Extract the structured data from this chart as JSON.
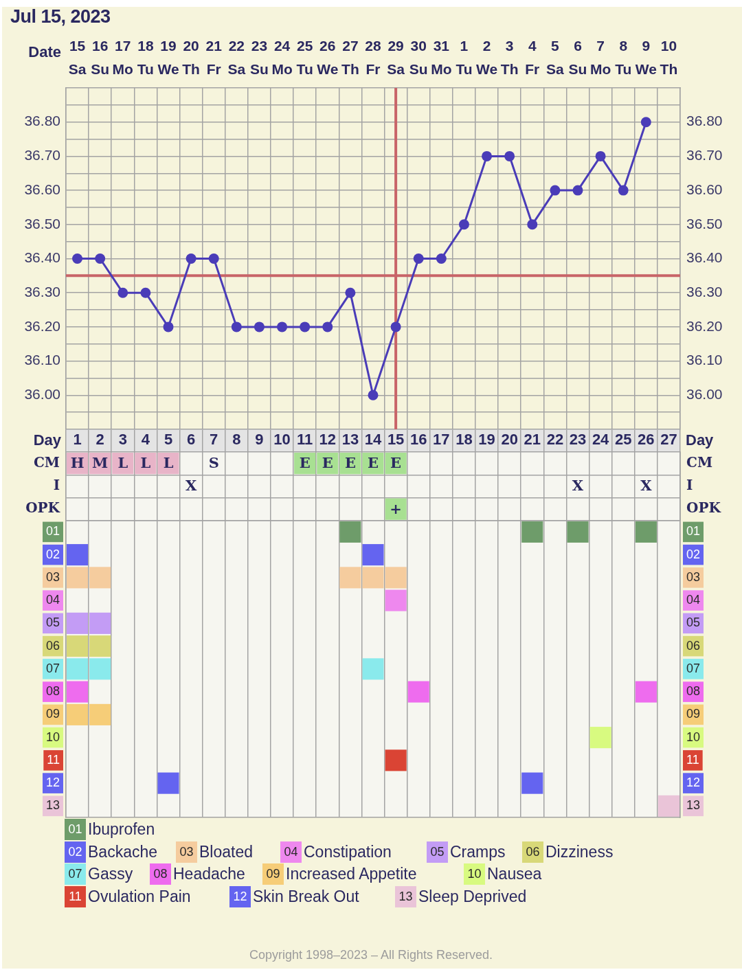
{
  "chart_data": [
    {
      "type": "line",
      "title": "Jul 15, 2023",
      "xlabel": "Day",
      "x2label": "Date",
      "x": [
        1,
        2,
        3,
        4,
        5,
        6,
        7,
        8,
        9,
        10,
        11,
        12,
        13,
        14,
        15,
        16,
        17,
        18,
        19,
        20,
        21,
        22,
        23,
        24,
        25,
        26
      ],
      "series": [
        {
          "color": "#4a3cb8",
          "values": [
            36.4,
            36.4,
            36.3,
            36.3,
            36.2,
            36.4,
            36.4,
            36.2,
            36.2,
            36.2,
            36.2,
            36.2,
            36.3,
            36.0,
            36.2,
            36.4,
            36.4,
            36.5,
            36.7,
            36.7,
            36.5,
            36.6,
            36.6,
            36.7,
            36.6,
            36.8
          ]
        }
      ],
      "xlim": [
        0.5,
        27.5
      ],
      "xticks": [
        1,
        2,
        3,
        4,
        5,
        6,
        7,
        8,
        9,
        10,
        11,
        12,
        13,
        14,
        15,
        16,
        17,
        18,
        19,
        20,
        21,
        22,
        23,
        24,
        25,
        26,
        27
      ],
      "x2lim": [
        "2023-07-14T12:00",
        "2023-08-10T12:00"
      ],
      "x2ticks": [
        {
          "value": "2023-07-15",
          "label": "15\nSa"
        },
        {
          "value": "2023-07-16",
          "label": "16\nSu"
        },
        {
          "value": "2023-07-17",
          "label": "17\nMo"
        },
        {
          "value": "2023-07-18",
          "label": "18\nTu"
        },
        {
          "value": "2023-07-19",
          "label": "19\nWe"
        },
        {
          "value": "2023-07-20",
          "label": "20\nTh"
        },
        {
          "value": "2023-07-21",
          "label": "21\nFr"
        },
        {
          "value": "2023-07-22",
          "label": "22\nSa"
        },
        {
          "value": "2023-07-23",
          "label": "23\nSu"
        },
        {
          "value": "2023-07-24",
          "label": "24\nMo"
        },
        {
          "value": "2023-07-25",
          "label": "25\nTu"
        },
        {
          "value": "2023-07-26",
          "label": "26\nWe"
        },
        {
          "value": "2023-07-27",
          "label": "27\nTh"
        },
        {
          "value": "2023-07-28",
          "label": "28\nFr"
        },
        {
          "value": "2023-07-29",
          "label": "29\nSa"
        },
        {
          "value": "2023-07-30",
          "label": "30\nSu"
        },
        {
          "value": "2023-07-31",
          "label": "31\nMo"
        },
        {
          "value": "2023-08-01",
          "label": "1\nTu"
        },
        {
          "value": "2023-08-02",
          "label": "2\nWe"
        },
        {
          "value": "2023-08-03",
          "label": "3\nTh"
        },
        {
          "value": "2023-08-04",
          "label": "4\nFr"
        },
        {
          "value": "2023-08-05",
          "label": "5\nSa"
        },
        {
          "value": "2023-08-06",
          "label": "6\nSu"
        },
        {
          "value": "2023-08-07",
          "label": "7\nMo"
        },
        {
          "value": "2023-08-08",
          "label": "8\nTu"
        },
        {
          "value": "2023-08-09",
          "label": "9\nWe"
        },
        {
          "value": "2023-08-10",
          "label": "10\nTh"
        }
      ],
      "ylim": [
        35.9,
        36.9
      ],
      "yticks": [
        {
          "value": 35.95,
          "label": null
        },
        {
          "value": 36,
          "label": "36.00"
        },
        {
          "value": 36.05,
          "label": null
        },
        {
          "value": 36.1,
          "label": "36.10"
        },
        {
          "value": 36.15,
          "label": null
        },
        {
          "value": 36.2,
          "label": "36.20"
        },
        {
          "value": 36.25,
          "label": null
        },
        {
          "value": 36.3,
          "label": "36.30"
        },
        {
          "value": 36.4,
          "label": "36.40"
        },
        {
          "value": 36.45,
          "label": null
        },
        {
          "value": 36.5,
          "label": "36.50"
        },
        {
          "value": 36.55,
          "label": null
        },
        {
          "value": 36.6,
          "label": "36.60"
        },
        {
          "value": 36.65,
          "label": null
        },
        {
          "value": 36.7,
          "label": "36.70"
        },
        {
          "value": 36.75,
          "label": null
        },
        {
          "value": 36.8,
          "label": "36.80"
        },
        {
          "value": 36.85,
          "label": null
        }
      ],
      "y2lim": [
        35.9,
        36.9
      ],
      "y2ticks": [
        {
          "value": 35.95,
          "label": null
        },
        {
          "value": 36,
          "label": "36.00"
        },
        {
          "value": 36.05,
          "label": null
        },
        {
          "value": 36.1,
          "label": "36.10"
        },
        {
          "value": 36.15,
          "label": null
        },
        {
          "value": 36.2,
          "label": "36.20"
        },
        {
          "value": 36.25,
          "label": null
        },
        {
          "value": 36.3,
          "label": "36.30"
        },
        {
          "value": 36.4,
          "label": "36.40"
        },
        {
          "value": 36.45,
          "label": null
        },
        {
          "value": 36.5,
          "label": "36.50"
        },
        {
          "value": 36.55,
          "label": null
        },
        {
          "value": 36.6,
          "label": "36.60"
        },
        {
          "value": 36.65,
          "label": null
        },
        {
          "value": 36.7,
          "label": "36.70"
        },
        {
          "value": 36.75,
          "label": null
        },
        {
          "value": 36.8,
          "label": "36.80"
        },
        {
          "value": 36.85,
          "label": null
        }
      ],
      "ref_lines": [
        {
          "axis": "y",
          "value": 36.35,
          "color": "#c86468"
        },
        {
          "axis": "x",
          "value": 15,
          "color": "#c86468"
        }
      ],
      "grid": true,
      "marker": "circle",
      "line_style": "solid"
    },
    {
      "type": "other",
      "y_categories": [
        "CM",
        "I",
        "OPK"
      ],
      "y2_categories": [
        "CM",
        "I",
        "OPK"
      ],
      "colors": [
        [
          "#e8b4c8",
          "#e8b4c8",
          "#e8b4c8",
          "#e8b4c8",
          "#e8b4c8",
          null,
          null,
          null,
          null,
          null,
          "#a8e092",
          "#a8e092",
          "#a8e092",
          "#a8e092",
          "#a8e092",
          null,
          null,
          null,
          null,
          null,
          null,
          null,
          null,
          null,
          null,
          null,
          null
        ],
        [
          null,
          null,
          null,
          null,
          null,
          null,
          null,
          null,
          null,
          null,
          null,
          null,
          null,
          null,
          null,
          null,
          null,
          null,
          null,
          null,
          null,
          null,
          null,
          null,
          null,
          null,
          null
        ],
        [
          null,
          null,
          null,
          null,
          null,
          null,
          null,
          null,
          null,
          null,
          null,
          null,
          null,
          null,
          "#a8e092",
          null,
          null,
          null,
          null,
          null,
          null,
          null,
          null,
          null,
          null,
          null,
          null
        ]
      ],
      "cell_labels": [
        [
          "H",
          "M",
          "L",
          "L",
          "L",
          null,
          "S",
          null,
          null,
          null,
          "E",
          "E",
          "E",
          "E",
          "E",
          null,
          null,
          null,
          null,
          null,
          null,
          null,
          null,
          null,
          null,
          null,
          null
        ],
        [
          null,
          null,
          null,
          null,
          null,
          "X",
          null,
          null,
          null,
          null,
          null,
          null,
          null,
          null,
          null,
          null,
          null,
          null,
          null,
          null,
          null,
          null,
          "X",
          null,
          null,
          "X",
          null
        ],
        [
          null,
          null,
          null,
          null,
          null,
          null,
          null,
          null,
          null,
          null,
          null,
          null,
          null,
          null,
          "+",
          null,
          null,
          null,
          null,
          null,
          null,
          null,
          null,
          null,
          null,
          null,
          null
        ]
      ]
    },
    {
      "type": "scatter",
      "x": [
        1,
        2,
        3,
        4,
        5,
        6,
        7,
        8,
        9,
        10,
        11,
        12,
        13,
        14,
        15,
        16,
        17,
        18,
        19,
        20,
        21,
        22,
        23,
        24,
        25,
        26,
        27
      ],
      "xlim": [
        0.5,
        27.5
      ],
      "xticks": [
        1,
        2,
        3,
        4,
        5,
        6,
        7,
        8,
        9,
        10,
        11,
        12,
        13,
        14,
        15,
        16,
        17,
        18,
        19,
        20,
        21,
        22,
        23,
        24,
        25,
        26,
        27
      ],
      "tick_labels": "y",
      "series": [
        {
          "name": "Ibuprofen",
          "color": "#6e9c6a",
          "values": [
            null,
            null,
            null,
            null,
            null,
            null,
            null,
            null,
            null,
            null,
            null,
            null,
            1,
            null,
            null,
            null,
            null,
            null,
            null,
            null,
            1,
            null,
            1,
            null,
            null,
            1,
            null
          ]
        },
        {
          "name": "Backache",
          "color": "#6464f0",
          "values": [
            2,
            null,
            null,
            null,
            null,
            null,
            null,
            null,
            null,
            null,
            null,
            null,
            null,
            2,
            null,
            null,
            null,
            null,
            null,
            null,
            null,
            null,
            null,
            null,
            null,
            null,
            null
          ]
        },
        {
          "name": "Bloated",
          "color": "#f5cc9e",
          "values": [
            3,
            3,
            null,
            null,
            null,
            null,
            null,
            null,
            null,
            null,
            null,
            null,
            3,
            3,
            3,
            null,
            null,
            null,
            null,
            null,
            null,
            null,
            null,
            null,
            null,
            null,
            null
          ]
        },
        {
          "name": "Constipation",
          "color": "#ee88ee",
          "values": [
            null,
            null,
            null,
            null,
            null,
            null,
            null,
            null,
            null,
            null,
            null,
            null,
            null,
            null,
            4,
            null,
            null,
            null,
            null,
            null,
            null,
            null,
            null,
            null,
            null,
            null,
            null
          ]
        },
        {
          "name": "Cramps",
          "color": "#c39cf5",
          "values": [
            5,
            5,
            null,
            null,
            null,
            null,
            null,
            null,
            null,
            null,
            null,
            null,
            null,
            null,
            null,
            null,
            null,
            null,
            null,
            null,
            null,
            null,
            null,
            null,
            null,
            null,
            null
          ]
        },
        {
          "name": "Dizziness",
          "color": "#d8d878",
          "values": [
            6,
            6,
            null,
            null,
            null,
            null,
            null,
            null,
            null,
            null,
            null,
            null,
            null,
            null,
            null,
            null,
            null,
            null,
            null,
            null,
            null,
            null,
            null,
            null,
            null,
            null,
            null
          ]
        },
        {
          "name": "Gassy",
          "color": "#8aeaec",
          "values": [
            7,
            7,
            null,
            null,
            null,
            null,
            null,
            null,
            null,
            null,
            null,
            null,
            null,
            7,
            null,
            null,
            null,
            null,
            null,
            null,
            null,
            null,
            null,
            null,
            null,
            null,
            null
          ]
        },
        {
          "name": "Headache",
          "color": "#ee6cee",
          "values": [
            8,
            null,
            null,
            null,
            null,
            null,
            null,
            null,
            null,
            null,
            null,
            null,
            null,
            null,
            null,
            8,
            null,
            null,
            null,
            null,
            null,
            null,
            null,
            null,
            null,
            8,
            null
          ]
        },
        {
          "name": "Increased Appetite",
          "color": "#f6cd78",
          "values": [
            9,
            9,
            null,
            null,
            null,
            null,
            null,
            null,
            null,
            null,
            null,
            null,
            null,
            null,
            null,
            null,
            null,
            null,
            null,
            null,
            null,
            null,
            null,
            null,
            null,
            null,
            null
          ]
        },
        {
          "name": "Nausea",
          "color": "#d8fa80",
          "values": [
            null,
            null,
            null,
            null,
            null,
            null,
            null,
            null,
            null,
            null,
            null,
            null,
            null,
            null,
            null,
            null,
            null,
            null,
            null,
            null,
            null,
            null,
            null,
            10,
            null,
            null,
            null
          ]
        },
        {
          "name": "Ovulation Pain",
          "color": "#da4434",
          "values": [
            null,
            null,
            null,
            null,
            null,
            null,
            null,
            null,
            null,
            null,
            null,
            null,
            null,
            null,
            11,
            null,
            null,
            null,
            null,
            null,
            null,
            null,
            null,
            null,
            null,
            null,
            null
          ]
        },
        {
          "name": "Skin Break Out",
          "color": "#6464f0",
          "values": [
            null,
            null,
            null,
            null,
            12,
            null,
            null,
            null,
            null,
            null,
            null,
            null,
            null,
            null,
            null,
            null,
            null,
            null,
            null,
            null,
            12,
            null,
            null,
            null,
            null,
            null,
            null
          ]
        },
        {
          "name": "Sleep Deprived",
          "color": "#eac4d8",
          "values": [
            null,
            null,
            null,
            null,
            null,
            null,
            null,
            null,
            null,
            null,
            null,
            null,
            null,
            null,
            null,
            null,
            null,
            null,
            null,
            null,
            null,
            null,
            null,
            null,
            null,
            null,
            13
          ]
        }
      ],
      "ylim": [
        13.5,
        -2.5
      ],
      "yticks": [
        {
          "value": 1,
          "label": "01"
        },
        {
          "value": 2,
          "label": "02"
        },
        {
          "value": 3,
          "label": "03"
        },
        {
          "value": 4,
          "label": "04"
        },
        {
          "value": 5,
          "label": "05"
        },
        {
          "value": 6,
          "label": "06"
        },
        {
          "value": 7,
          "label": "07"
        },
        {
          "value": 8,
          "label": "08"
        },
        {
          "value": 9,
          "label": "09"
        },
        {
          "value": 10,
          "label": "10"
        },
        {
          "value": 11,
          "label": "11"
        },
        {
          "value": 12,
          "label": "12"
        },
        {
          "value": 13,
          "label": "13"
        }
      ],
      "y2lim": [
        13.5,
        -2.5
      ],
      "y2ticks": [
        {
          "value": 1,
          "label": "01"
        },
        {
          "value": 2,
          "label": "02"
        },
        {
          "value": 3,
          "label": "03"
        },
        {
          "value": 4,
          "label": "04"
        },
        {
          "value": 5,
          "label": "05"
        },
        {
          "value": 6,
          "label": "06"
        },
        {
          "value": 7,
          "label": "07"
        },
        {
          "value": 8,
          "label": "08"
        },
        {
          "value": 9,
          "label": "09"
        },
        {
          "value": 10,
          "label": "10"
        },
        {
          "value": 11,
          "label": "11"
        },
        {
          "value": 12,
          "label": "12"
        },
        {
          "value": 13,
          "label": "13"
        }
      ],
      "marker": "square",
      "grid": "x",
      "legend": "bottom",
      "annotations": [
        "Copyright 1998–2023 – All Rights Reserved."
      ]
    }
  ]
}
